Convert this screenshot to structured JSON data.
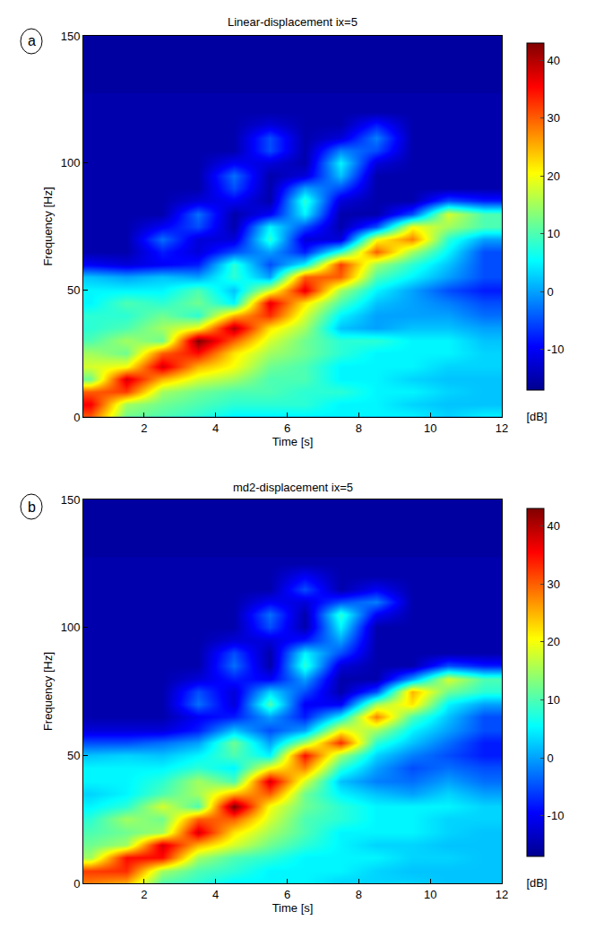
{
  "chart_data": [
    {
      "type": "heatmap",
      "title": "Linear-displacement ix=5",
      "panel": "a",
      "x_label": "Time [s]",
      "y_label": "Frequency [Hz]",
      "colorbar_label": "[dB]",
      "grid": false,
      "xlim": [
        0.3,
        12
      ],
      "xticks": [
        2,
        4,
        6,
        8,
        10,
        12
      ],
      "ylim": [
        0,
        150
      ],
      "yticks": [
        0,
        50,
        100,
        150
      ],
      "zlim": [
        -17,
        43
      ],
      "zticks": [
        -10,
        0,
        10,
        20,
        30,
        40
      ],
      "x": [
        0.5,
        1.5,
        2.5,
        3.5,
        4.5,
        5.5,
        6.5,
        7.5,
        8.5,
        9.5,
        10.5,
        11.5
      ],
      "y": [
        0,
        5,
        10,
        15,
        20,
        25,
        30,
        35,
        40,
        45,
        50,
        55,
        60,
        65,
        70,
        75,
        80,
        85,
        90,
        95,
        100,
        105,
        110,
        115,
        120,
        125
      ],
      "z": [
        [
          30,
          12,
          10,
          8,
          5,
          5,
          5,
          5,
          5,
          5,
          3,
          5
        ],
        [
          36,
          15,
          12,
          10,
          8,
          8,
          8,
          5,
          5,
          3,
          2,
          2
        ],
        [
          30,
          32,
          15,
          12,
          10,
          10,
          8,
          8,
          5,
          5,
          3,
          2
        ],
        [
          12,
          38,
          25,
          18,
          15,
          10,
          10,
          5,
          5,
          3,
          2,
          2
        ],
        [
          18,
          20,
          38,
          25,
          20,
          12,
          10,
          5,
          5,
          5,
          3,
          3
        ],
        [
          15,
          12,
          30,
          35,
          22,
          15,
          12,
          8,
          5,
          5,
          5,
          3
        ],
        [
          10,
          15,
          12,
          43,
          30,
          18,
          12,
          8,
          8,
          5,
          5,
          2
        ],
        [
          8,
          10,
          15,
          20,
          40,
          22,
          15,
          2,
          0,
          2,
          2,
          0
        ],
        [
          8,
          8,
          12,
          8,
          25,
          33,
          18,
          5,
          0,
          0,
          0,
          -3
        ],
        [
          5,
          10,
          8,
          12,
          5,
          37,
          22,
          10,
          2,
          0,
          -2,
          -5
        ],
        [
          5,
          5,
          5,
          10,
          2,
          18,
          37,
          15,
          5,
          0,
          -5,
          -8
        ],
        [
          2,
          0,
          2,
          0,
          8,
          0,
          30,
          30,
          10,
          5,
          0,
          -5
        ],
        [
          -10,
          -12,
          -10,
          -8,
          8,
          -5,
          5,
          32,
          15,
          8,
          2,
          -5
        ],
        [
          -15,
          -15,
          -8,
          -12,
          -5,
          0,
          -8,
          8,
          30,
          15,
          5,
          -5
        ],
        [
          -15,
          -15,
          -3,
          -12,
          -12,
          8,
          -12,
          -12,
          20,
          28,
          8,
          0
        ],
        [
          -15,
          -15,
          -10,
          -5,
          -15,
          5,
          -5,
          -15,
          -5,
          20,
          15,
          10
        ],
        [
          -15,
          -15,
          -15,
          -3,
          -15,
          -10,
          5,
          -15,
          -15,
          -5,
          18,
          10
        ],
        [
          -15,
          -15,
          -15,
          -12,
          -10,
          -15,
          8,
          -12,
          -15,
          -15,
          -5,
          -8
        ],
        [
          -15,
          -15,
          -15,
          -15,
          -5,
          -15,
          0,
          -5,
          -15,
          -15,
          -15,
          -15
        ],
        [
          -15,
          -15,
          -15,
          -15,
          -3,
          -15,
          -12,
          2,
          -15,
          -15,
          -15,
          -15
        ],
        [
          -15,
          -15,
          -15,
          -15,
          -10,
          -12,
          -15,
          5,
          -12,
          -15,
          -15,
          -15
        ],
        [
          -15,
          -15,
          -15,
          -15,
          -15,
          -5,
          -15,
          -2,
          -5,
          -15,
          -15,
          -15
        ],
        [
          -15,
          -15,
          -15,
          -15,
          -15,
          -5,
          -15,
          -12,
          -2,
          -15,
          -15,
          -15
        ],
        [
          -15,
          -15,
          -15,
          -15,
          -15,
          -12,
          -15,
          -15,
          -8,
          -15,
          -15,
          -15
        ],
        [
          -15,
          -15,
          -15,
          -15,
          -15,
          -15,
          -15,
          -15,
          -15,
          -15,
          -15,
          -15
        ],
        [
          -15,
          -15,
          -15,
          -15,
          -15,
          -15,
          -15,
          -15,
          -15,
          -15,
          -15,
          -15
        ]
      ]
    },
    {
      "type": "heatmap",
      "title": "md2-displacement ix=5",
      "panel": "b",
      "x_label": "Time [s]",
      "y_label": "Frequency [Hz]",
      "colorbar_label": "[dB]",
      "grid": false,
      "xlim": [
        0.3,
        12
      ],
      "xticks": [
        2,
        4,
        6,
        8,
        10,
        12
      ],
      "ylim": [
        0,
        150
      ],
      "yticks": [
        0,
        50,
        100,
        150
      ],
      "zlim": [
        -17,
        43
      ],
      "zticks": [
        -10,
        0,
        10,
        20,
        30,
        40
      ],
      "x": [
        0.5,
        1.5,
        2.5,
        3.5,
        4.5,
        5.5,
        6.5,
        7.5,
        8.5,
        9.5,
        10.5,
        11.5
      ],
      "y": [
        0,
        5,
        10,
        15,
        20,
        25,
        30,
        35,
        40,
        45,
        50,
        55,
        60,
        65,
        70,
        75,
        80,
        85,
        90,
        95,
        100,
        105,
        110,
        115,
        120,
        125
      ],
      "z": [
        [
          28,
          25,
          10,
          8,
          5,
          5,
          5,
          3,
          3,
          3,
          2,
          2
        ],
        [
          32,
          33,
          15,
          10,
          8,
          5,
          5,
          5,
          3,
          2,
          2,
          2
        ],
        [
          15,
          35,
          35,
          15,
          10,
          8,
          5,
          5,
          5,
          3,
          3,
          2
        ],
        [
          12,
          15,
          38,
          25,
          18,
          12,
          8,
          5,
          3,
          3,
          2,
          2
        ],
        [
          10,
          12,
          15,
          38,
          22,
          15,
          10,
          5,
          5,
          5,
          3,
          2
        ],
        [
          8,
          15,
          12,
          30,
          30,
          18,
          10,
          8,
          5,
          5,
          3,
          3
        ],
        [
          5,
          8,
          18,
          10,
          43,
          20,
          12,
          8,
          5,
          5,
          5,
          3
        ],
        [
          3,
          5,
          10,
          15,
          25,
          30,
          12,
          5,
          2,
          0,
          3,
          0
        ],
        [
          5,
          5,
          8,
          15,
          10,
          38,
          18,
          2,
          -2,
          -3,
          0,
          -3
        ],
        [
          5,
          5,
          5,
          8,
          5,
          20,
          28,
          8,
          0,
          -5,
          -3,
          -5
        ],
        [
          2,
          3,
          2,
          5,
          10,
          5,
          35,
          15,
          3,
          -2,
          -5,
          -8
        ],
        [
          -5,
          -5,
          -3,
          0,
          12,
          0,
          15,
          33,
          8,
          2,
          -3,
          -8
        ],
        [
          -12,
          -12,
          -12,
          -8,
          2,
          -5,
          0,
          20,
          15,
          5,
          0,
          -5
        ],
        [
          -15,
          -15,
          -15,
          -10,
          -8,
          0,
          -8,
          5,
          28,
          10,
          2,
          -5
        ],
        [
          -15,
          -15,
          -15,
          -3,
          -12,
          10,
          -10,
          -10,
          15,
          22,
          5,
          0
        ],
        [
          -15,
          -15,
          -15,
          -5,
          -12,
          3,
          -5,
          -15,
          -5,
          25,
          12,
          8
        ],
        [
          -15,
          -15,
          -15,
          -12,
          -8,
          -10,
          0,
          -15,
          -15,
          0,
          18,
          10
        ],
        [
          -15,
          -15,
          -15,
          -15,
          -3,
          -15,
          8,
          -12,
          -15,
          -15,
          -5,
          -8
        ],
        [
          -15,
          -15,
          -15,
          -15,
          -5,
          -15,
          5,
          -5,
          -15,
          -15,
          -15,
          -15
        ],
        [
          -15,
          -15,
          -15,
          -15,
          -12,
          -12,
          -8,
          0,
          -15,
          -15,
          -15,
          -15
        ],
        [
          -15,
          -15,
          -15,
          -15,
          -15,
          -5,
          -15,
          5,
          -15,
          -15,
          -15,
          -15
        ],
        [
          -15,
          -15,
          -15,
          -15,
          -15,
          -3,
          -15,
          8,
          -10,
          -15,
          -15,
          -15
        ],
        [
          -15,
          -15,
          -15,
          -15,
          -15,
          -10,
          -12,
          -5,
          -2,
          -15,
          -15,
          -15
        ],
        [
          -15,
          -15,
          -15,
          -15,
          -15,
          -15,
          -5,
          -15,
          -10,
          -15,
          -15,
          -15
        ],
        [
          -15,
          -15,
          -15,
          -15,
          -15,
          -15,
          -10,
          -15,
          -15,
          -15,
          -15,
          -15
        ],
        [
          -15,
          -15,
          -15,
          -15,
          -15,
          -15,
          -15,
          -15,
          -15,
          -15,
          -15,
          -15
        ]
      ]
    }
  ]
}
